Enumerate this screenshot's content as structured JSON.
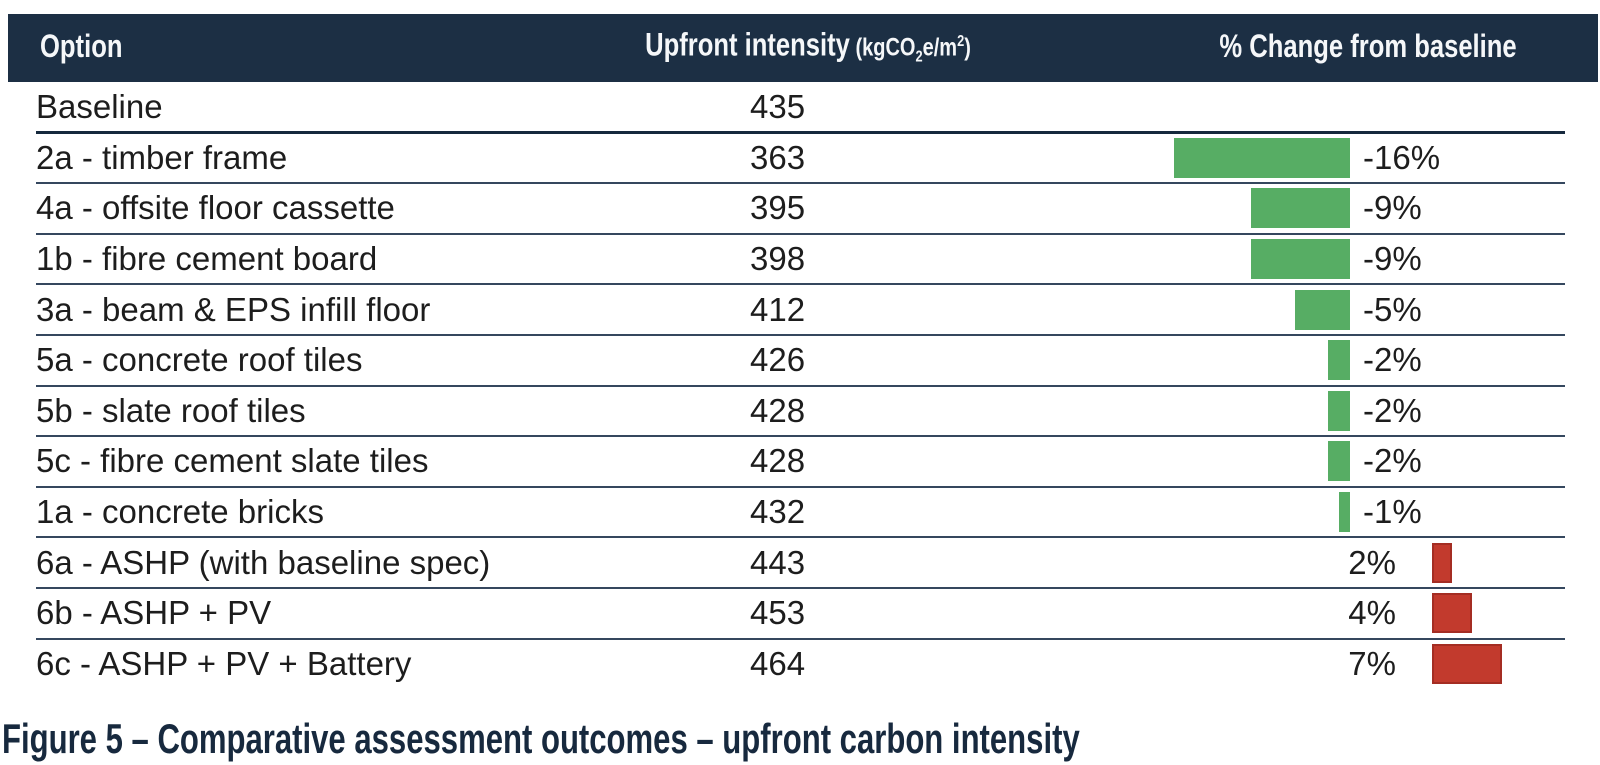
{
  "table": {
    "headers": {
      "option": "Option",
      "intensity": "Upfront intensity",
      "unit_open": " (kgCO",
      "unit_sub": "2",
      "unit_mid": "e/m",
      "unit_sup": "2",
      "unit_close": ")",
      "change": "% Change from baseline"
    },
    "rows": [
      {
        "option": "Baseline",
        "intensity": "435",
        "pct_label": "",
        "pct": 0
      },
      {
        "option": "2a - timber frame",
        "intensity": "363",
        "pct_label": "-16%",
        "pct": -16
      },
      {
        "option": "4a - offsite floor cassette",
        "intensity": "395",
        "pct_label": "-9%",
        "pct": -9
      },
      {
        "option": "1b - fibre cement board",
        "intensity": "398",
        "pct_label": "-9%",
        "pct": -9
      },
      {
        "option": "3a - beam & EPS infill floor",
        "intensity": "412",
        "pct_label": "-5%",
        "pct": -5
      },
      {
        "option": "5a - concrete roof tiles",
        "intensity": "426",
        "pct_label": "-2%",
        "pct": -2
      },
      {
        "option": "5b - slate roof tiles",
        "intensity": "428",
        "pct_label": "-2%",
        "pct": -2
      },
      {
        "option": "5c - fibre cement slate tiles",
        "intensity": "428",
        "pct_label": "-2%",
        "pct": -2
      },
      {
        "option": "1a - concrete bricks",
        "intensity": "432",
        "pct_label": "-1%",
        "pct": -1
      },
      {
        "option": "6a - ASHP (with baseline spec)",
        "intensity": "443",
        "pct_label": "2%",
        "pct": 2
      },
      {
        "option": "6b - ASHP + PV",
        "intensity": "453",
        "pct_label": "4%",
        "pct": 4
      },
      {
        "option": "6c - ASHP + PV + Battery",
        "intensity": "464",
        "pct_label": "7%",
        "pct": 7
      }
    ]
  },
  "caption": "Figure 5 – Comparative assessment outcomes – upfront carbon intensity",
  "colors": {
    "header_bg": "#1c2f44",
    "negative_bar": "#57ad64",
    "positive_bar": "#c23a2d",
    "caption_text": "#17293e"
  },
  "chart_data": {
    "type": "table",
    "title": "Figure 5 – Comparative assessment outcomes – upfront carbon intensity",
    "columns": [
      "Option",
      "Upfront intensity (kgCO2e/m2)",
      "% Change from baseline"
    ],
    "categories": [
      "Baseline",
      "2a - timber frame",
      "4a - offsite floor cassette",
      "1b - fibre cement board",
      "3a - beam & EPS infill floor",
      "5a - concrete roof tiles",
      "5b - slate roof tiles",
      "5c - fibre cement slate tiles",
      "1a - concrete bricks",
      "6a - ASHP (with baseline spec)",
      "6b - ASHP + PV",
      "6c - ASHP + PV + Battery"
    ],
    "series": [
      {
        "name": "Upfront intensity (kgCO2e/m2)",
        "values": [
          435,
          363,
          395,
          398,
          412,
          426,
          428,
          428,
          432,
          443,
          453,
          464
        ]
      },
      {
        "name": "% Change from baseline",
        "values": [
          null,
          -16,
          -9,
          -9,
          -5,
          -2,
          -2,
          -2,
          -1,
          2,
          4,
          7
        ]
      }
    ],
    "bar_chart": {
      "embedded_in_column": "% Change from baseline",
      "negative_color": "#57ad64",
      "positive_color": "#c23a2d",
      "negative_bars_grow": "left",
      "positive_bars_grow": "right"
    },
    "legend": "none",
    "grid": "horizontal row separators only"
  }
}
